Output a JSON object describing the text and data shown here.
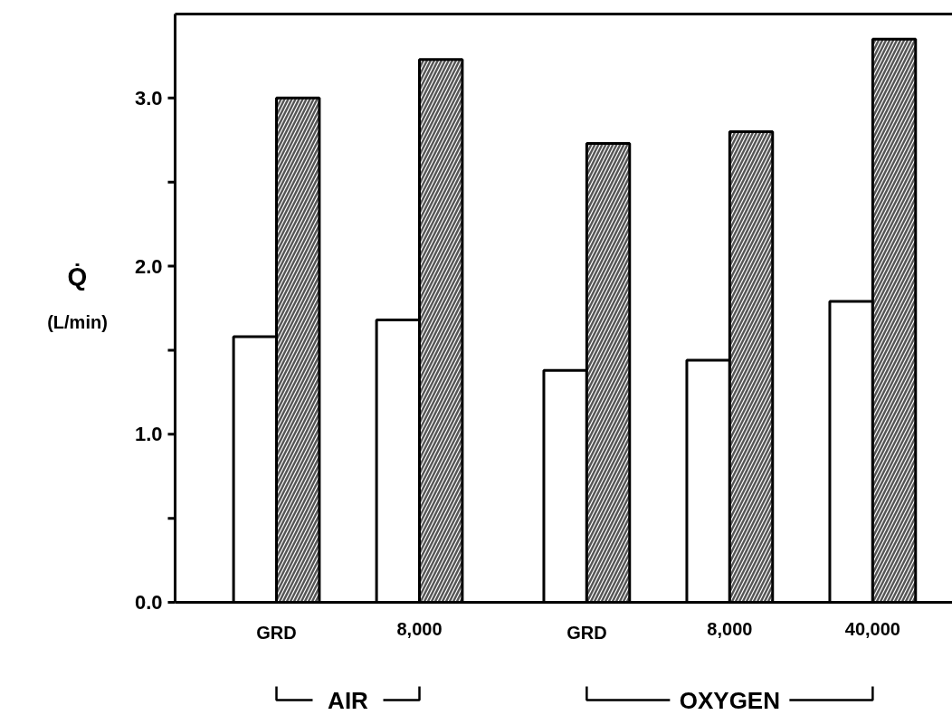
{
  "chart_data": {
    "type": "bar",
    "ylabel": "Q̇\n(L/min)",
    "categories": [
      "GRD",
      "8,000",
      null,
      "GRD",
      "8,000",
      "40,000"
    ],
    "series": [
      {
        "color": "#ffffff",
        "values": [
          1.58,
          1.68,
          null,
          1.38,
          1.44,
          1.79
        ]
      },
      {
        "color": "#555555",
        "values": [
          3.0,
          3.23,
          null,
          2.73,
          2.8,
          3.35
        ]
      }
    ],
    "ylim": [
      0,
      3.5
    ],
    "yticks": [
      {
        "value": 0,
        "label": "0.0"
      },
      {
        "value": 0.5,
        "label": null
      },
      {
        "value": 1,
        "label": "1.0"
      },
      {
        "value": 1.5,
        "label": null
      },
      {
        "value": 2,
        "label": "2.0"
      },
      {
        "value": 2.5,
        "label": null
      },
      {
        "value": 3,
        "label": "3.0"
      }
    ],
    "annotations": [
      "AIR",
      "OXYGEN"
    ],
    "grid": false,
    "legend": false
  }
}
